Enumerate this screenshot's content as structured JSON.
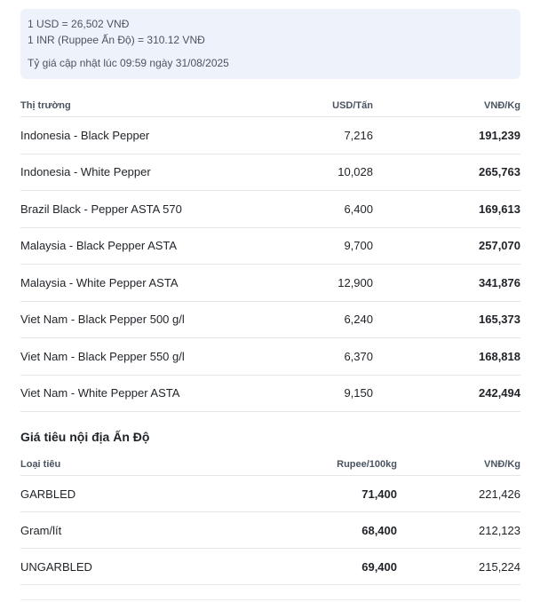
{
  "rates": {
    "usd": "1 USD = 26,502 VNĐ",
    "inr": "1 INR (Ruppee Ấn Độ) = 310.12 VNĐ",
    "updated": "Tỷ giá cập nhật lúc 09:59 ngày 31/08/2025"
  },
  "intl": {
    "headers": [
      "Thị trường",
      "USD/Tấn",
      "VNĐ/Kg"
    ],
    "rows": [
      {
        "market": "Indonesia - Black Pepper",
        "usd": "7,216",
        "vnd": "191,239"
      },
      {
        "market": "Indonesia - White Pepper",
        "usd": "10,028",
        "vnd": "265,763"
      },
      {
        "market": "Brazil Black - Pepper ASTA 570",
        "usd": "6,400",
        "vnd": "169,613"
      },
      {
        "market": "Malaysia - Black Pepper ASTA",
        "usd": "9,700",
        "vnd": "257,070"
      },
      {
        "market": "Malaysia - White Pepper ASTA",
        "usd": "12,900",
        "vnd": "341,876"
      },
      {
        "market": "Viet Nam - Black Pepper 500 g/l",
        "usd": "6,240",
        "vnd": "165,373"
      },
      {
        "market": "Viet Nam - Black Pepper 550 g/l",
        "usd": "6,370",
        "vnd": "168,818"
      },
      {
        "market": "Viet Nam - White Pepper ASTA",
        "usd": "9,150",
        "vnd": "242,494"
      }
    ]
  },
  "india": {
    "title": "Giá tiêu nội địa Ấn Độ",
    "headers": [
      "Loại tiêu",
      "Rupee/100kg",
      "VNĐ/Kg"
    ],
    "rows": [
      {
        "type": "GARBLED",
        "rupee": "71,400",
        "vnd": "221,426"
      },
      {
        "type": "Gram/lít",
        "rupee": "68,400",
        "vnd": "212,123"
      },
      {
        "type": "UNGARBLED",
        "rupee": "69,400",
        "vnd": "215,224"
      }
    ]
  }
}
